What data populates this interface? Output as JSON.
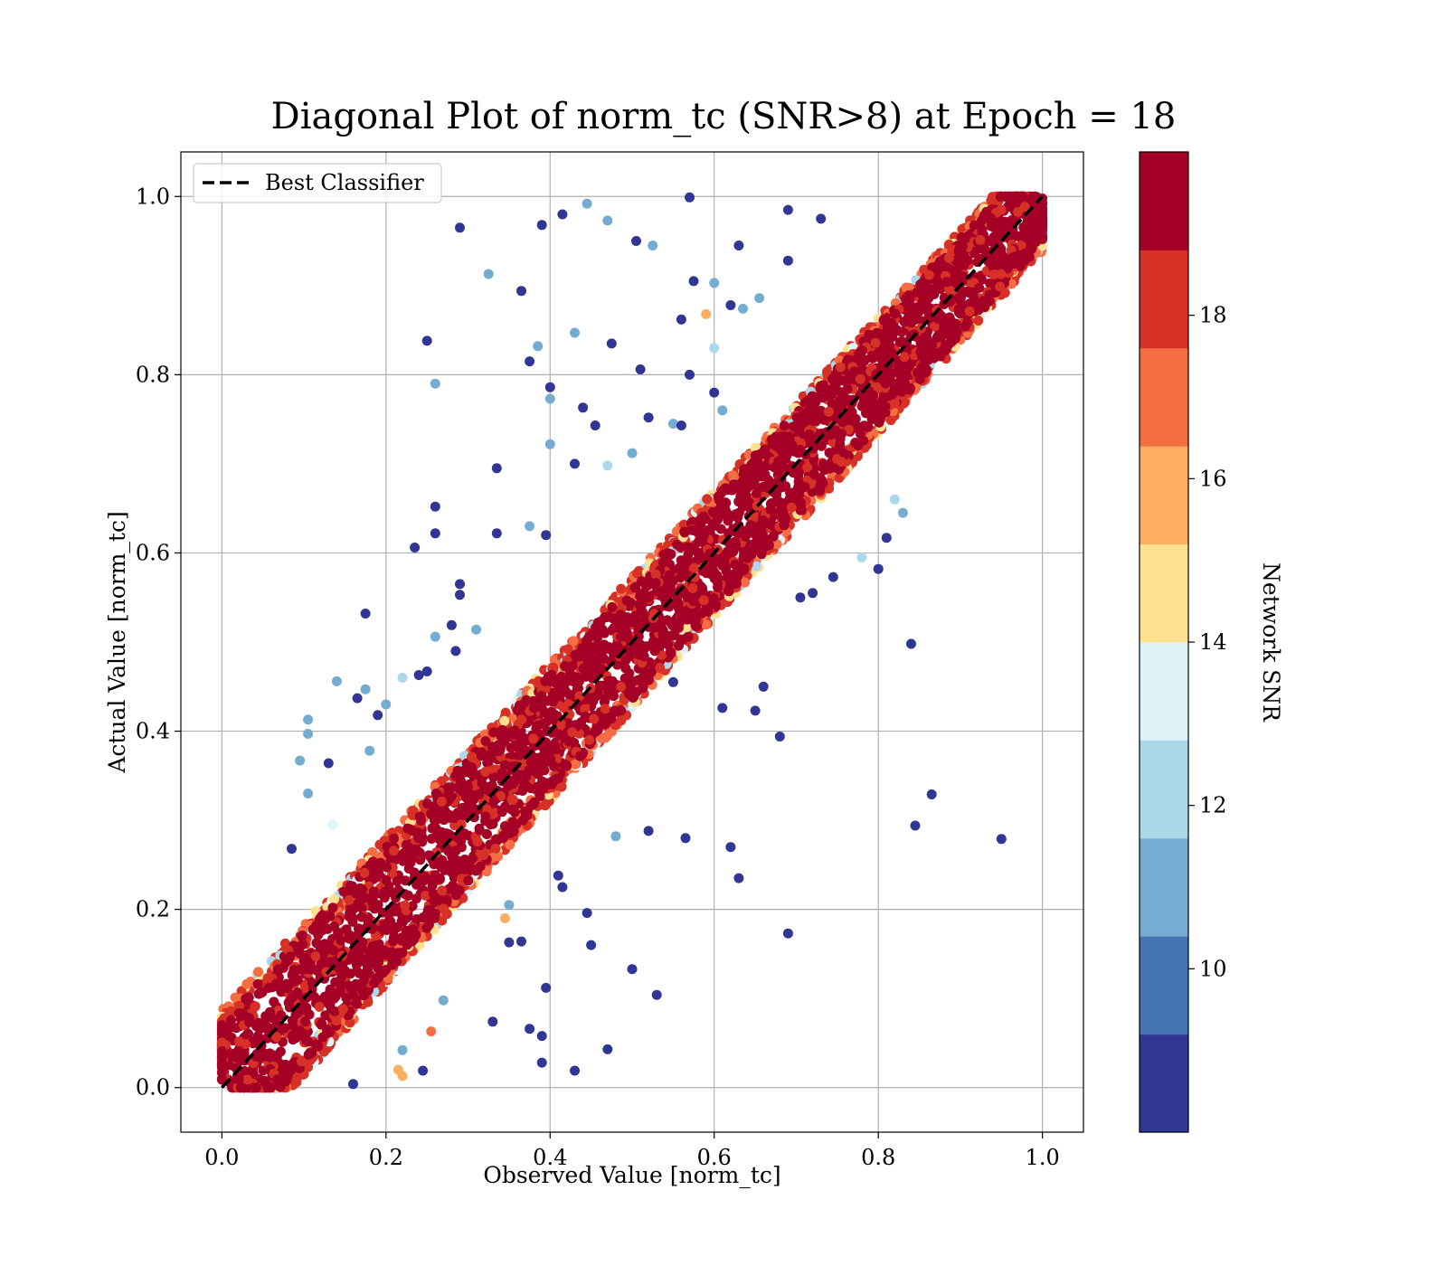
{
  "chart_data": {
    "type": "scatter",
    "title": "Diagonal Plot of norm_tc (SNR>8) at Epoch = 18",
    "xlabel": "Observed Value [norm_tc]",
    "ylabel": "Actual Value [norm_tc]",
    "xlim": [
      -0.05,
      1.05
    ],
    "ylim": [
      -0.05,
      1.05
    ],
    "xticks": [
      0.0,
      0.2,
      0.4,
      0.6,
      0.8,
      1.0
    ],
    "yticks": [
      0.0,
      0.2,
      0.4,
      0.6,
      0.8,
      1.0
    ],
    "xtick_labels": [
      "0.0",
      "0.2",
      "0.4",
      "0.6",
      "0.8",
      "1.0"
    ],
    "ytick_labels": [
      "0.0",
      "0.2",
      "0.4",
      "0.6",
      "0.8",
      "1.0"
    ],
    "grid": true,
    "legend": {
      "placement": "upper-left",
      "entries": [
        "Best Classifier"
      ]
    },
    "reference_line": {
      "name": "Best Classifier",
      "x": [
        0.0,
        1.0
      ],
      "y": [
        0.0,
        1.0
      ],
      "style": "dashed",
      "color": "#000000"
    },
    "colorbar": {
      "label": "Network SNR",
      "range": [
        8,
        20
      ],
      "ticks": [
        10,
        12,
        14,
        16,
        18
      ],
      "tick_labels": [
        "10",
        "12",
        "14",
        "16",
        "18"
      ],
      "bin_colors": [
        "#313695",
        "#4575b4",
        "#74add1",
        "#abd9e9",
        "#e0f3f8",
        "#fee090",
        "#fdae61",
        "#f46d43",
        "#d73027",
        "#a50026"
      ]
    },
    "band": {
      "description_free": true,
      "half_width": [
        0.08,
        0.055
      ],
      "dominant_snr": 20
    },
    "outliers": [
      {
        "x": 0.29,
        "y": 0.965,
        "snr": 8
      },
      {
        "x": 0.39,
        "y": 0.968,
        "snr": 8
      },
      {
        "x": 0.415,
        "y": 0.98,
        "snr": 8
      },
      {
        "x": 0.445,
        "y": 0.992,
        "snr": 11
      },
      {
        "x": 0.57,
        "y": 0.999,
        "snr": 8
      },
      {
        "x": 0.47,
        "y": 0.973,
        "snr": 10
      },
      {
        "x": 0.505,
        "y": 0.95,
        "snr": 8
      },
      {
        "x": 0.525,
        "y": 0.945,
        "snr": 10
      },
      {
        "x": 0.325,
        "y": 0.913,
        "snr": 10
      },
      {
        "x": 0.365,
        "y": 0.894,
        "snr": 8
      },
      {
        "x": 0.25,
        "y": 0.838,
        "snr": 8
      },
      {
        "x": 0.385,
        "y": 0.832,
        "snr": 10
      },
      {
        "x": 0.375,
        "y": 0.815,
        "snr": 8
      },
      {
        "x": 0.26,
        "y": 0.79,
        "snr": 10
      },
      {
        "x": 0.4,
        "y": 0.786,
        "snr": 8
      },
      {
        "x": 0.4,
        "y": 0.773,
        "snr": 11
      },
      {
        "x": 0.44,
        "y": 0.763,
        "snr": 8
      },
      {
        "x": 0.455,
        "y": 0.743,
        "snr": 8
      },
      {
        "x": 0.4,
        "y": 0.722,
        "snr": 10
      },
      {
        "x": 0.43,
        "y": 0.7,
        "snr": 8
      },
      {
        "x": 0.335,
        "y": 0.695,
        "snr": 8
      },
      {
        "x": 0.475,
        "y": 0.835,
        "snr": 8
      },
      {
        "x": 0.51,
        "y": 0.806,
        "snr": 8
      },
      {
        "x": 0.43,
        "y": 0.847,
        "snr": 11
      },
      {
        "x": 0.575,
        "y": 0.905,
        "snr": 8
      },
      {
        "x": 0.6,
        "y": 0.903,
        "snr": 11
      },
      {
        "x": 0.56,
        "y": 0.862,
        "snr": 8
      },
      {
        "x": 0.59,
        "y": 0.868,
        "snr": 15
      },
      {
        "x": 0.26,
        "y": 0.652,
        "snr": 8
      },
      {
        "x": 0.26,
        "y": 0.622,
        "snr": 8
      },
      {
        "x": 0.235,
        "y": 0.606,
        "snr": 8
      },
      {
        "x": 0.335,
        "y": 0.622,
        "snr": 8
      },
      {
        "x": 0.175,
        "y": 0.532,
        "snr": 8
      },
      {
        "x": 0.29,
        "y": 0.565,
        "snr": 8
      },
      {
        "x": 0.29,
        "y": 0.553,
        "snr": 8
      },
      {
        "x": 0.14,
        "y": 0.456,
        "snr": 10
      },
      {
        "x": 0.175,
        "y": 0.447,
        "snr": 10
      },
      {
        "x": 0.105,
        "y": 0.413,
        "snr": 10
      },
      {
        "x": 0.105,
        "y": 0.397,
        "snr": 10
      },
      {
        "x": 0.095,
        "y": 0.367,
        "snr": 10
      },
      {
        "x": 0.13,
        "y": 0.364,
        "snr": 8
      },
      {
        "x": 0.18,
        "y": 0.378,
        "snr": 10
      },
      {
        "x": 0.19,
        "y": 0.418,
        "snr": 8
      },
      {
        "x": 0.2,
        "y": 0.43,
        "snr": 10
      },
      {
        "x": 0.22,
        "y": 0.46,
        "snr": 12
      },
      {
        "x": 0.105,
        "y": 0.33,
        "snr": 10
      },
      {
        "x": 0.135,
        "y": 0.295,
        "snr": 13
      },
      {
        "x": 0.085,
        "y": 0.268,
        "snr": 8
      },
      {
        "x": 0.62,
        "y": 0.27,
        "snr": 8
      },
      {
        "x": 0.63,
        "y": 0.235,
        "snr": 8
      },
      {
        "x": 0.565,
        "y": 0.28,
        "snr": 8
      },
      {
        "x": 0.52,
        "y": 0.288,
        "snr": 8
      },
      {
        "x": 0.48,
        "y": 0.282,
        "snr": 10
      },
      {
        "x": 0.69,
        "y": 0.173,
        "snr": 8
      },
      {
        "x": 0.445,
        "y": 0.196,
        "snr": 8
      },
      {
        "x": 0.45,
        "y": 0.16,
        "snr": 8
      },
      {
        "x": 0.41,
        "y": 0.238,
        "snr": 8
      },
      {
        "x": 0.415,
        "y": 0.225,
        "snr": 8
      },
      {
        "x": 0.5,
        "y": 0.133,
        "snr": 8
      },
      {
        "x": 0.53,
        "y": 0.104,
        "snr": 8
      },
      {
        "x": 0.395,
        "y": 0.112,
        "snr": 8
      },
      {
        "x": 0.33,
        "y": 0.074,
        "snr": 8
      },
      {
        "x": 0.375,
        "y": 0.066,
        "snr": 8
      },
      {
        "x": 0.39,
        "y": 0.058,
        "snr": 8
      },
      {
        "x": 0.47,
        "y": 0.043,
        "snr": 8
      },
      {
        "x": 0.39,
        "y": 0.028,
        "snr": 8
      },
      {
        "x": 0.43,
        "y": 0.019,
        "snr": 8
      },
      {
        "x": 0.365,
        "y": 0.164,
        "snr": 8
      },
      {
        "x": 0.35,
        "y": 0.163,
        "snr": 8
      },
      {
        "x": 0.84,
        "y": 0.498,
        "snr": 8
      },
      {
        "x": 0.865,
        "y": 0.329,
        "snr": 8
      },
      {
        "x": 0.845,
        "y": 0.294,
        "snr": 8
      },
      {
        "x": 0.95,
        "y": 0.279,
        "snr": 8
      },
      {
        "x": 0.8,
        "y": 0.582,
        "snr": 8
      },
      {
        "x": 0.68,
        "y": 0.394,
        "snr": 8
      },
      {
        "x": 0.66,
        "y": 0.45,
        "snr": 8
      },
      {
        "x": 0.65,
        "y": 0.423,
        "snr": 8
      },
      {
        "x": 0.61,
        "y": 0.426,
        "snr": 8
      },
      {
        "x": 0.63,
        "y": 0.945,
        "snr": 8
      },
      {
        "x": 0.69,
        "y": 0.985,
        "snr": 8
      },
      {
        "x": 0.73,
        "y": 0.975,
        "snr": 8
      },
      {
        "x": 0.69,
        "y": 0.928,
        "snr": 8
      },
      {
        "x": 0.62,
        "y": 0.878,
        "snr": 8
      },
      {
        "x": 0.635,
        "y": 0.874,
        "snr": 11
      },
      {
        "x": 0.655,
        "y": 0.886,
        "snr": 11
      },
      {
        "x": 0.81,
        "y": 0.617,
        "snr": 8
      },
      {
        "x": 0.82,
        "y": 0.66,
        "snr": 12
      },
      {
        "x": 0.83,
        "y": 0.645,
        "snr": 10
      },
      {
        "x": 0.78,
        "y": 0.595,
        "snr": 12
      },
      {
        "x": 0.55,
        "y": 0.455,
        "snr": 8
      },
      {
        "x": 0.245,
        "y": 0.019,
        "snr": 8
      },
      {
        "x": 0.16,
        "y": 0.004,
        "snr": 8
      },
      {
        "x": 0.215,
        "y": 0.02,
        "snr": 15
      },
      {
        "x": 0.22,
        "y": 0.013,
        "snr": 15
      },
      {
        "x": 0.35,
        "y": 0.205,
        "snr": 11
      },
      {
        "x": 0.345,
        "y": 0.19,
        "snr": 15
      },
      {
        "x": 0.22,
        "y": 0.042,
        "snr": 10
      },
      {
        "x": 0.255,
        "y": 0.063,
        "snr": 17
      },
      {
        "x": 0.27,
        "y": 0.098,
        "snr": 11
      },
      {
        "x": 0.72,
        "y": 0.555,
        "snr": 8
      },
      {
        "x": 0.705,
        "y": 0.55,
        "snr": 8
      },
      {
        "x": 0.745,
        "y": 0.573,
        "snr": 8
      },
      {
        "x": 0.5,
        "y": 0.712,
        "snr": 10
      },
      {
        "x": 0.47,
        "y": 0.698,
        "snr": 12
      },
      {
        "x": 0.52,
        "y": 0.752,
        "snr": 8
      },
      {
        "x": 0.55,
        "y": 0.745,
        "snr": 10
      },
      {
        "x": 0.56,
        "y": 0.743,
        "snr": 8
      },
      {
        "x": 0.57,
        "y": 0.8,
        "snr": 8
      },
      {
        "x": 0.395,
        "y": 0.62,
        "snr": 8
      },
      {
        "x": 0.375,
        "y": 0.63,
        "snr": 11
      },
      {
        "x": 0.28,
        "y": 0.519,
        "snr": 8
      },
      {
        "x": 0.31,
        "y": 0.514,
        "snr": 10
      },
      {
        "x": 0.285,
        "y": 0.49,
        "snr": 8
      },
      {
        "x": 0.26,
        "y": 0.506,
        "snr": 10
      },
      {
        "x": 0.25,
        "y": 0.467,
        "snr": 8
      },
      {
        "x": 0.24,
        "y": 0.463,
        "snr": 8
      },
      {
        "x": 0.165,
        "y": 0.437,
        "snr": 8
      },
      {
        "x": 0.6,
        "y": 0.78,
        "snr": 8
      },
      {
        "x": 0.61,
        "y": 0.76,
        "snr": 10
      },
      {
        "x": 0.6,
        "y": 0.83,
        "snr": 12
      }
    ]
  }
}
